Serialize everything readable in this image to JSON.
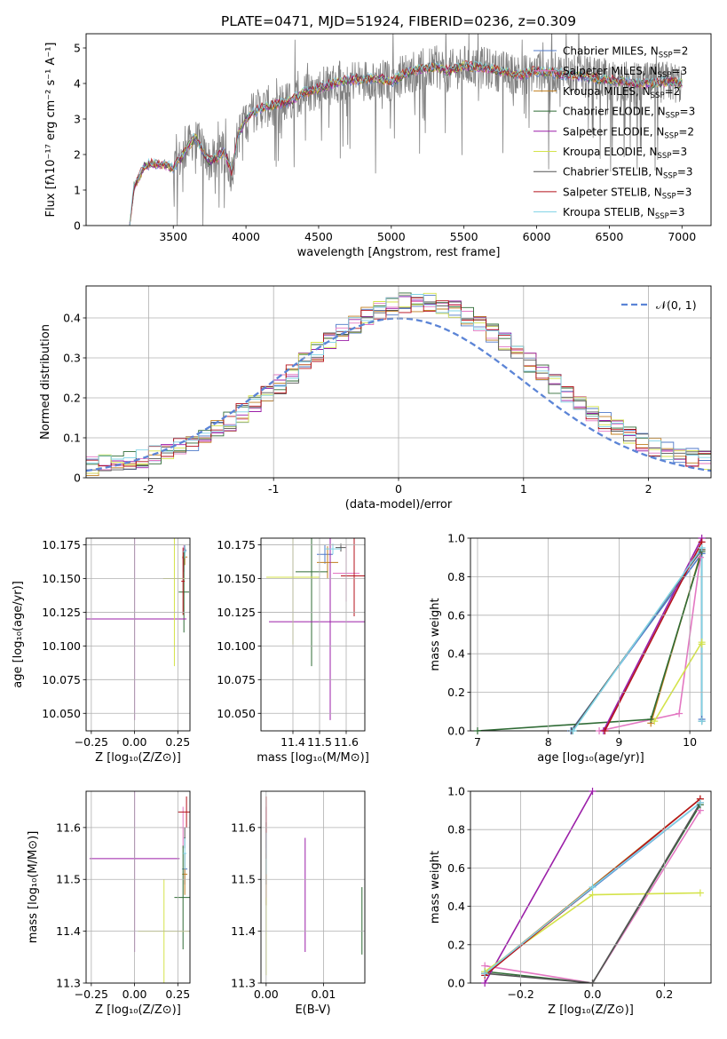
{
  "title": "PLATE=0471, MJD=51924, FIBERID=0236, z=0.309",
  "models": [
    {
      "name": "Chabrier MILES",
      "nssp": "2",
      "color": "#4f79c9"
    },
    {
      "name": "Salpeter MILES",
      "nssp": "3",
      "color": "#e377c2"
    },
    {
      "name": "Kroupa MILES",
      "nssp": "2",
      "color": "#c07e1e"
    },
    {
      "name": "Chabrier ELODIE",
      "nssp": "3",
      "color": "#2f6b35"
    },
    {
      "name": "Salpeter ELODIE",
      "nssp": "2",
      "color": "#9b1fa8"
    },
    {
      "name": "Kroupa ELODIE",
      "nssp": "3",
      "color": "#d4e34a"
    },
    {
      "name": "Chabrier STELIB",
      "nssp": "3",
      "color": "#555555"
    },
    {
      "name": "Salpeter STELIB",
      "nssp": "3",
      "color": "#b5121b"
    },
    {
      "name": "Kroupa STELIB",
      "nssp": "3",
      "color": "#7fd3e6"
    }
  ],
  "chart_data": [
    {
      "id": "spectrum",
      "type": "line",
      "xlabel": "wavelength [Angstrom, rest frame]",
      "ylabel": "Flux [fλ10⁻¹⁷ erg cm⁻² s⁻¹ A⁻¹]",
      "xlim": [
        2900,
        7200
      ],
      "ylim": [
        0,
        5.4
      ],
      "xticks": [
        3500,
        4000,
        4500,
        5000,
        5500,
        6000,
        6500,
        7000
      ],
      "yticks": [
        0,
        1,
        2,
        3,
        4,
        5
      ],
      "data_color": "#808080",
      "continuum": {
        "x": [
          3200,
          3230,
          3300,
          3350,
          3400,
          3450,
          3500,
          3600,
          3650,
          3700,
          3750,
          3800,
          3850,
          3900,
          3950,
          4000,
          4050,
          4100,
          4200,
          4300,
          4400,
          4500,
          4600,
          4700,
          4800,
          4900,
          5000,
          5100,
          5200,
          5300,
          5400,
          5500,
          5600,
          5700,
          5800,
          5900,
          6000,
          6100,
          6200,
          6300,
          6400,
          6500,
          6600,
          6700,
          6800,
          6900,
          7000
        ],
        "y": [
          0.0,
          1.1,
          1.65,
          1.75,
          1.7,
          1.72,
          1.6,
          2.2,
          2.5,
          2.1,
          1.8,
          1.9,
          2.1,
          1.5,
          2.6,
          3.0,
          3.2,
          3.3,
          3.4,
          3.5,
          3.75,
          3.85,
          4.0,
          4.1,
          4.1,
          4.15,
          4.05,
          4.3,
          4.4,
          4.45,
          4.35,
          4.5,
          4.45,
          4.4,
          4.3,
          4.25,
          4.35,
          4.3,
          4.25,
          4.2,
          4.15,
          4.1,
          4.05,
          4.0,
          4.0,
          4.05,
          4.0
        ]
      },
      "noise_start": 3500
    },
    {
      "id": "residuals",
      "type": "histogram",
      "xlabel": "(data-model)/error",
      "ylabel": "Normed distribution",
      "xlim": [
        -2.5,
        2.5
      ],
      "ylim": [
        0,
        0.48
      ],
      "xticks": [
        -2,
        -1,
        0,
        1,
        2
      ],
      "yticks": [
        0.0,
        0.1,
        0.2,
        0.3,
        0.4
      ],
      "bin_width": 0.1,
      "reference": {
        "label": "𝒩(0, 1)",
        "color": "#5b84d6"
      }
    },
    {
      "id": "age-vs-Z",
      "type": "scatter",
      "xlabel": "Z [log₁₀(Z/Z⊙)]",
      "ylabel": "age  [log₁₀(age/yr)]",
      "xlim": [
        -0.28,
        0.32
      ],
      "ylim": [
        10.037,
        10.18
      ],
      "xticks": [
        -0.25,
        0.0,
        0.25
      ],
      "xtick_labels": [
        "−0.25",
        "0.00",
        "0.25"
      ],
      "yticks": [
        10.05,
        10.075,
        10.1,
        10.125,
        10.15,
        10.175
      ],
      "ytick_labels": [
        "10.050",
        "10.075",
        "10.100",
        "10.125",
        "10.150",
        "10.175"
      ],
      "points": [
        {
          "m": 0,
          "x": 0.29,
          "y": 10.171,
          "xe": 0.01,
          "ye": 0.004
        },
        {
          "m": 1,
          "x": 0.285,
          "y": 10.165,
          "xe": 0.01,
          "ye": 0.01
        },
        {
          "m": 2,
          "x": 0.29,
          "y": 10.166,
          "xe": 0.015,
          "ye": 0.006
        },
        {
          "m": 3,
          "x": 0.285,
          "y": 10.14,
          "xe": 0.03,
          "ye": 0.03
        },
        {
          "m": 4,
          "x": 0.0,
          "y": 10.12,
          "xe": 0.3,
          "ye": 0.075
        },
        {
          "m": 5,
          "x": 0.23,
          "y": 10.15,
          "xe": 0.065,
          "ye": 0.065
        },
        {
          "m": 6,
          "x": 0.29,
          "y": 10.172,
          "xe": 0.005,
          "ye": 0.003
        },
        {
          "m": 7,
          "x": 0.28,
          "y": 10.148,
          "xe": 0.01,
          "ye": 0.025
        },
        {
          "m": 8,
          "x": 0.29,
          "y": 10.17,
          "xe": 0.01,
          "ye": 0.005
        }
      ]
    },
    {
      "id": "age-vs-mass",
      "type": "scatter",
      "xlabel": "mass [log₁₀(M/M⊙)]",
      "ylabel": "",
      "xlim": [
        11.28,
        11.67
      ],
      "ylim": [
        10.037,
        10.18
      ],
      "xticks": [
        11.4,
        11.5,
        11.6
      ],
      "xtick_labels": [
        "11.4",
        "11.5",
        "11.6"
      ],
      "yticks": [
        10.05,
        10.075,
        10.1,
        10.125,
        10.15,
        10.175
      ],
      "ytick_labels": [
        "10.050",
        "10.075",
        "10.100",
        "10.125",
        "10.150",
        "10.175"
      ],
      "points": [
        {
          "m": 0,
          "x": 11.52,
          "y": 10.168,
          "xe": 0.03,
          "ye": 0.007
        },
        {
          "m": 1,
          "x": 11.6,
          "y": 10.154,
          "xe": 0.05,
          "ye": 0.021
        },
        {
          "m": 2,
          "x": 11.53,
          "y": 10.162,
          "xe": 0.04,
          "ye": 0.012
        },
        {
          "m": 3,
          "x": 11.47,
          "y": 10.155,
          "xe": 0.06,
          "ye": 0.07
        },
        {
          "m": 4,
          "x": 11.54,
          "y": 10.118,
          "xe": 0.23,
          "ye": 0.073
        },
        {
          "m": 5,
          "x": 11.4,
          "y": 10.151,
          "xe": 0.1,
          "ye": 0.05
        },
        {
          "m": 6,
          "x": 11.58,
          "y": 10.173,
          "xe": 0.02,
          "ye": 0.003
        },
        {
          "m": 7,
          "x": 11.63,
          "y": 10.152,
          "xe": 0.05,
          "ye": 0.03
        },
        {
          "m": 8,
          "x": 11.55,
          "y": 10.172,
          "xe": 0.03,
          "ye": 0.004
        }
      ]
    },
    {
      "id": "weight-vs-age",
      "type": "line",
      "xlabel": "age  [log₁₀(age/yr)]",
      "ylabel": "mass weight",
      "xlim": [
        6.9,
        10.3
      ],
      "ylim": [
        0,
        1
      ],
      "xticks": [
        7,
        8,
        9,
        10
      ],
      "xtick_labels": [
        "7",
        "8",
        "9",
        "10"
      ],
      "yticks": [
        0,
        0.2,
        0.4,
        0.6,
        0.8,
        1.0
      ],
      "ytick_labels": [
        "0.0",
        "0.2",
        "0.4",
        "0.6",
        "0.8",
        "1.0"
      ],
      "series": [
        {
          "m": 0,
          "x": [
            8.32,
            10.17,
            10.17
          ],
          "y": [
            0.0,
            0.92,
            0.06
          ]
        },
        {
          "m": 1,
          "x": [
            8.72,
            9.85,
            10.15
          ],
          "y": [
            0.0,
            0.09,
            0.9
          ]
        },
        {
          "m": 2,
          "x": [
            9.45,
            10.17
          ],
          "y": [
            0.04,
            0.94
          ]
        },
        {
          "m": 3,
          "x": [
            7.0,
            9.45,
            10.17
          ],
          "y": [
            0.0,
            0.06,
            0.93
          ]
        },
        {
          "m": 4,
          "x": [
            8.78,
            10.17
          ],
          "y": [
            0.0,
            1.0
          ]
        },
        {
          "m": 5,
          "x": [
            9.5,
            10.17,
            10.17
          ],
          "y": [
            0.05,
            0.46,
            0.45
          ]
        },
        {
          "m": 6,
          "x": [
            8.33,
            10.17,
            10.17
          ],
          "y": [
            0.0,
            0.94,
            0.05
          ]
        },
        {
          "m": 7,
          "x": [
            8.8,
            10.17
          ],
          "y": [
            0.0,
            0.98
          ]
        },
        {
          "m": 8,
          "x": [
            8.35,
            10.17,
            10.17
          ],
          "y": [
            0.0,
            0.95,
            0.05
          ]
        }
      ]
    },
    {
      "id": "mass-vs-Z",
      "type": "scatter",
      "xlabel": "Z [log₁₀(Z/Z⊙)]",
      "ylabel": "mass [log₁₀(M/M⊙)]",
      "xlim": [
        -0.28,
        0.32
      ],
      "ylim": [
        11.3,
        11.67
      ],
      "xticks": [
        -0.25,
        0.0,
        0.25
      ],
      "xtick_labels": [
        "−0.25",
        "0.00",
        "0.25"
      ],
      "yticks": [
        11.3,
        11.4,
        11.5,
        11.6
      ],
      "ytick_labels": [
        "11.3",
        "11.4",
        "11.5",
        "11.6"
      ],
      "points": [
        {
          "m": 0,
          "x": 0.29,
          "y": 11.52,
          "xe": 0.015,
          "ye": 0.03
        },
        {
          "m": 1,
          "x": 0.28,
          "y": 11.6,
          "xe": 0.02,
          "ye": 0.04
        },
        {
          "m": 2,
          "x": 0.29,
          "y": 11.51,
          "xe": 0.015,
          "ye": 0.04
        },
        {
          "m": 3,
          "x": 0.28,
          "y": 11.465,
          "xe": 0.05,
          "ye": 0.1
        },
        {
          "m": 4,
          "x": 0.0,
          "y": 11.54,
          "xe": 0.26,
          "ye": 0.18
        },
        {
          "m": 5,
          "x": 0.17,
          "y": 11.4,
          "xe": 0.15,
          "ye": 0.1
        },
        {
          "m": 6,
          "x": 0.29,
          "y": 11.58,
          "xe": 0.005,
          "ye": 0.02
        },
        {
          "m": 7,
          "x": 0.3,
          "y": 11.63,
          "xe": 0.05,
          "ye": 0.03
        },
        {
          "m": 8,
          "x": 0.29,
          "y": 11.55,
          "xe": 0.01,
          "ye": 0.03
        }
      ]
    },
    {
      "id": "mass-vs-EBV",
      "type": "scatter",
      "xlabel": "E(B-V)",
      "ylabel": "",
      "xlim": [
        -0.0009,
        0.0172
      ],
      "ylim": [
        11.3,
        11.67
      ],
      "xticks": [
        0.0,
        0.01
      ],
      "xtick_labels": [
        "0.00",
        "0.01"
      ],
      "yticks": [
        11.3,
        11.4,
        11.5,
        11.6
      ],
      "ytick_labels": [
        "11.3",
        "11.4",
        "11.5",
        "11.6"
      ],
      "points": [
        {
          "m": 0,
          "x": 0.0,
          "y": 11.52,
          "xe": 0,
          "ye": 0.03
        },
        {
          "m": 1,
          "x": 0.0,
          "y": 11.6,
          "xe": 0,
          "ye": 0.04
        },
        {
          "m": 2,
          "x": 0.0,
          "y": 11.5,
          "xe": 0,
          "ye": 0.05
        },
        {
          "m": 3,
          "x": 0.0167,
          "y": 11.42,
          "xe": 0,
          "ye": 0.065
        },
        {
          "m": 4,
          "x": 0.0068,
          "y": 11.47,
          "xe": 0,
          "ye": 0.11
        },
        {
          "m": 5,
          "x": 0.0,
          "y": 11.39,
          "xe": 0,
          "ye": 0.075
        },
        {
          "m": 6,
          "x": 0.0,
          "y": 11.58,
          "xe": 0,
          "ye": 0.03
        },
        {
          "m": 7,
          "x": 0.0,
          "y": 11.6,
          "xe": 0,
          "ye": 0.06
        },
        {
          "m": 8,
          "x": 0.0,
          "y": 11.55,
          "xe": 0,
          "ye": 0.04
        }
      ]
    },
    {
      "id": "weight-vs-Z",
      "type": "line",
      "xlabel": "Z [log₁₀(Z/Z⊙)]",
      "ylabel": "mass weight",
      "xlim": [
        -0.34,
        0.33
      ],
      "ylim": [
        0,
        1
      ],
      "xticks": [
        -0.2,
        0.0,
        0.2
      ],
      "xtick_labels": [
        "−0.2",
        "0.0",
        "0.2"
      ],
      "yticks": [
        0,
        0.2,
        0.4,
        0.6,
        0.8,
        1.0
      ],
      "ytick_labels": [
        "0.0",
        "0.2",
        "0.4",
        "0.6",
        "0.8",
        "1.0"
      ],
      "series": [
        {
          "m": 0,
          "x": [
            -0.3,
            0.3
          ],
          "y": [
            0.05,
            0.94
          ]
        },
        {
          "m": 1,
          "x": [
            -0.3,
            0.0,
            0.3
          ],
          "y": [
            0.09,
            0.0,
            0.9
          ]
        },
        {
          "m": 2,
          "x": [
            -0.3,
            0.3
          ],
          "y": [
            0.05,
            0.96
          ]
        },
        {
          "m": 3,
          "x": [
            -0.3,
            0.0,
            0.3
          ],
          "y": [
            0.06,
            0.0,
            0.93
          ]
        },
        {
          "m": 4,
          "x": [
            -0.3,
            0.0
          ],
          "y": [
            0.0,
            1.0
          ]
        },
        {
          "m": 5,
          "x": [
            -0.3,
            0.0,
            0.3
          ],
          "y": [
            0.06,
            0.46,
            0.47
          ]
        },
        {
          "m": 6,
          "x": [
            -0.3,
            0.0,
            0.3
          ],
          "y": [
            0.05,
            0.0,
            0.94
          ]
        },
        {
          "m": 7,
          "x": [
            -0.3,
            0.3
          ],
          "y": [
            0.04,
            0.96
          ]
        },
        {
          "m": 8,
          "x": [
            -0.3,
            0.0,
            0.3
          ],
          "y": [
            0.05,
            0.5,
            0.94
          ]
        }
      ]
    }
  ]
}
